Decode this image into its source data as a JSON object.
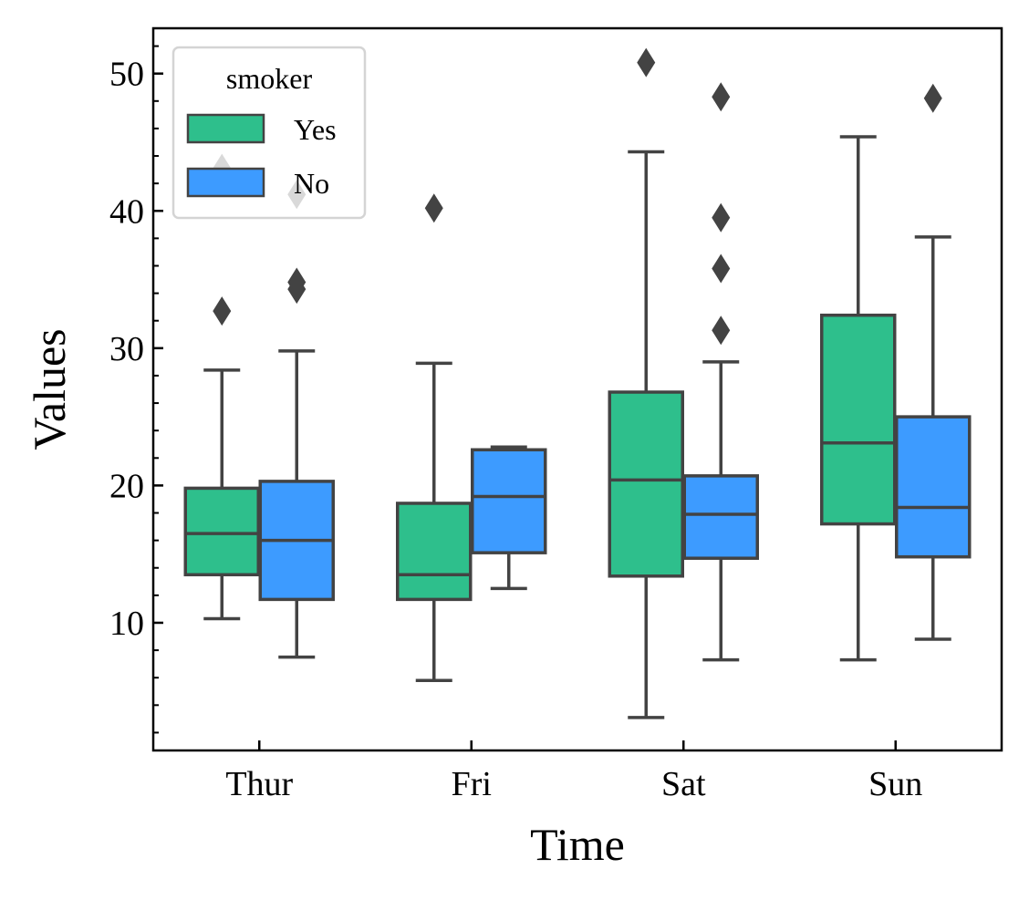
{
  "chart_data": {
    "type": "box",
    "xlabel": "Time",
    "ylabel": "Values",
    "categories": [
      "Thur",
      "Fri",
      "Sat",
      "Sun"
    ],
    "ylim": [
      0.7,
      53.3
    ],
    "yticks": [
      10,
      20,
      30,
      40,
      50
    ],
    "yminor_step": 2,
    "legend": {
      "title": "smoker",
      "position": "top-left"
    },
    "series": [
      {
        "name": "Yes",
        "color": "#2ebf8c",
        "boxes": [
          {
            "whislo": 10.3,
            "q1": 13.5,
            "med": 16.5,
            "q3": 19.8,
            "whishi": 28.4,
            "fliers": [
              32.7,
              43.1
            ]
          },
          {
            "whislo": 5.8,
            "q1": 11.7,
            "med": 13.5,
            "q3": 18.7,
            "whishi": 28.9,
            "fliers": [
              40.2
            ]
          },
          {
            "whislo": 3.1,
            "q1": 13.4,
            "med": 20.4,
            "q3": 26.8,
            "whishi": 44.3,
            "fliers": [
              50.8
            ]
          },
          {
            "whislo": 7.3,
            "q1": 17.2,
            "med": 23.1,
            "q3": 32.4,
            "whishi": 45.4,
            "fliers": []
          }
        ]
      },
      {
        "name": "No",
        "color": "#3d9bff",
        "boxes": [
          {
            "whislo": 7.5,
            "q1": 11.7,
            "med": 16.0,
            "q3": 20.3,
            "whishi": 29.8,
            "fliers": [
              34.3,
              34.8,
              41.2
            ]
          },
          {
            "whislo": 12.5,
            "q1": 15.1,
            "med": 19.2,
            "q3": 22.6,
            "whishi": 22.8,
            "fliers": []
          },
          {
            "whislo": 7.3,
            "q1": 14.7,
            "med": 17.9,
            "q3": 20.7,
            "whishi": 29.0,
            "fliers": [
              31.3,
              35.8,
              39.5,
              48.3
            ]
          },
          {
            "whislo": 8.8,
            "q1": 14.8,
            "med": 18.4,
            "q3": 25.0,
            "whishi": 38.1,
            "fliers": [
              48.2
            ]
          }
        ]
      }
    ]
  }
}
